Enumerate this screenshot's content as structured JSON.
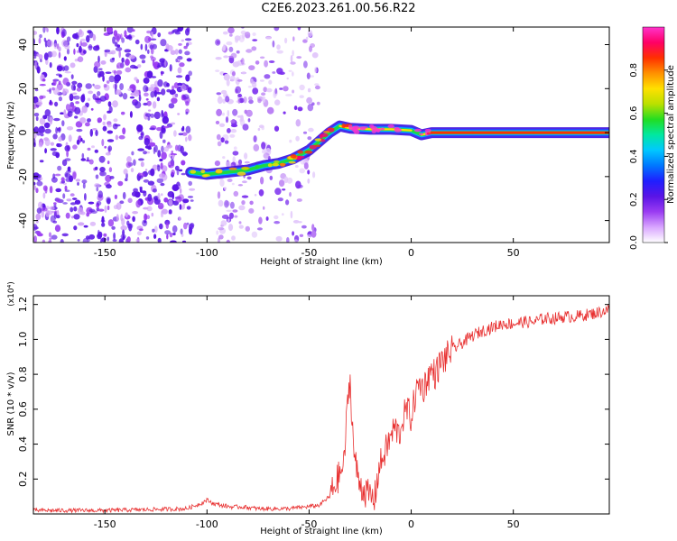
{
  "title": "C2E6.2023.261.00.56.R22",
  "chart_data": [
    {
      "type": "heatmap",
      "xlabel": "Height of straight line (km)",
      "ylabel": "Frequency (Hz)",
      "xlim": [
        -185,
        97
      ],
      "ylim": [
        -50,
        48
      ],
      "xticks": [
        -150,
        -100,
        -50,
        0,
        50
      ],
      "yticks": [
        -40,
        -20,
        0,
        20,
        40
      ],
      "colorbar": {
        "label": "Normalized spectral amplitude",
        "range": [
          0,
          1
        ],
        "ticks": [
          "0.0",
          "0.2",
          "0.4",
          "0.6",
          "0.8"
        ],
        "colors": [
          "#ffffff",
          "#d9a6ff",
          "#9a3cf2",
          "#5a14e6",
          "#1f1fff",
          "#0077ff",
          "#00c8ff",
          "#00e8a0",
          "#22dd22",
          "#bbe000",
          "#ffe000",
          "#ff9000",
          "#ff3000",
          "#ff0066",
          "#ff33cc"
        ]
      },
      "ridge": {
        "x": [
          -108,
          -100,
          -90,
          -80,
          -72,
          -65,
          -58,
          -50,
          -45,
          -40,
          -35,
          -30,
          -20,
          -10,
          0,
          5,
          10,
          30,
          60,
          97
        ],
        "frequency": [
          -18,
          -19,
          -18,
          -17,
          -15,
          -14,
          -12,
          -8,
          -4,
          0,
          3,
          2,
          1.5,
          1.5,
          1,
          -1,
          0,
          0,
          0,
          0
        ],
        "amplitude": [
          0.4,
          0.45,
          0.4,
          0.35,
          0.45,
          0.5,
          0.55,
          0.5,
          0.55,
          0.6,
          0.55,
          0.75,
          0.8,
          0.85,
          0.7,
          0.6,
          0.95,
          0.95,
          0.95,
          0.9
        ]
      },
      "noise_region_x": [
        -185,
        -45
      ],
      "gap_x": [
        -107,
        -95
      ]
    },
    {
      "type": "line",
      "xlabel": "Height of straight line (km)",
      "ylabel": "SNR (10 * v/v)",
      "y_multiplier": "(x10⁴)",
      "xlim": [
        -185,
        97
      ],
      "ylim": [
        0,
        1.25
      ],
      "xticks": [
        -150,
        -100,
        -50,
        0,
        50
      ],
      "yticks": [
        0.2,
        0.4,
        0.6,
        0.8,
        1.0,
        1.2
      ],
      "color": "#e83030",
      "series": [
        {
          "x": [
            -185,
            -150,
            -110,
            -103,
            -100,
            -97,
            -93,
            -88,
            -82,
            -75,
            -70,
            -60,
            -52,
            -45,
            -40,
            -36,
            -33,
            -31,
            -30,
            -29,
            -28,
            -26,
            -24,
            -22,
            -20,
            -18,
            -16,
            -14,
            -12,
            -10,
            -8,
            -6,
            -4,
            -2,
            0,
            2,
            4,
            6,
            8,
            10,
            12,
            14,
            16,
            20,
            25,
            30,
            35,
            40,
            45,
            50,
            55,
            60,
            65,
            70,
            75,
            80,
            85,
            90,
            97
          ],
          "values": [
            0.02,
            0.02,
            0.03,
            0.06,
            0.08,
            0.06,
            0.05,
            0.04,
            0.04,
            0.03,
            0.03,
            0.03,
            0.04,
            0.05,
            0.1,
            0.2,
            0.28,
            0.65,
            0.78,
            0.55,
            0.35,
            0.2,
            0.15,
            0.12,
            0.1,
            0.08,
            0.25,
            0.32,
            0.38,
            0.44,
            0.5,
            0.45,
            0.55,
            0.6,
            0.55,
            0.68,
            0.75,
            0.72,
            0.78,
            0.82,
            0.8,
            0.86,
            0.88,
            0.94,
            0.98,
            1.02,
            1.05,
            1.07,
            1.09,
            1.09,
            1.1,
            1.1,
            1.12,
            1.12,
            1.13,
            1.13,
            1.14,
            1.15,
            1.17
          ]
        }
      ]
    }
  ]
}
